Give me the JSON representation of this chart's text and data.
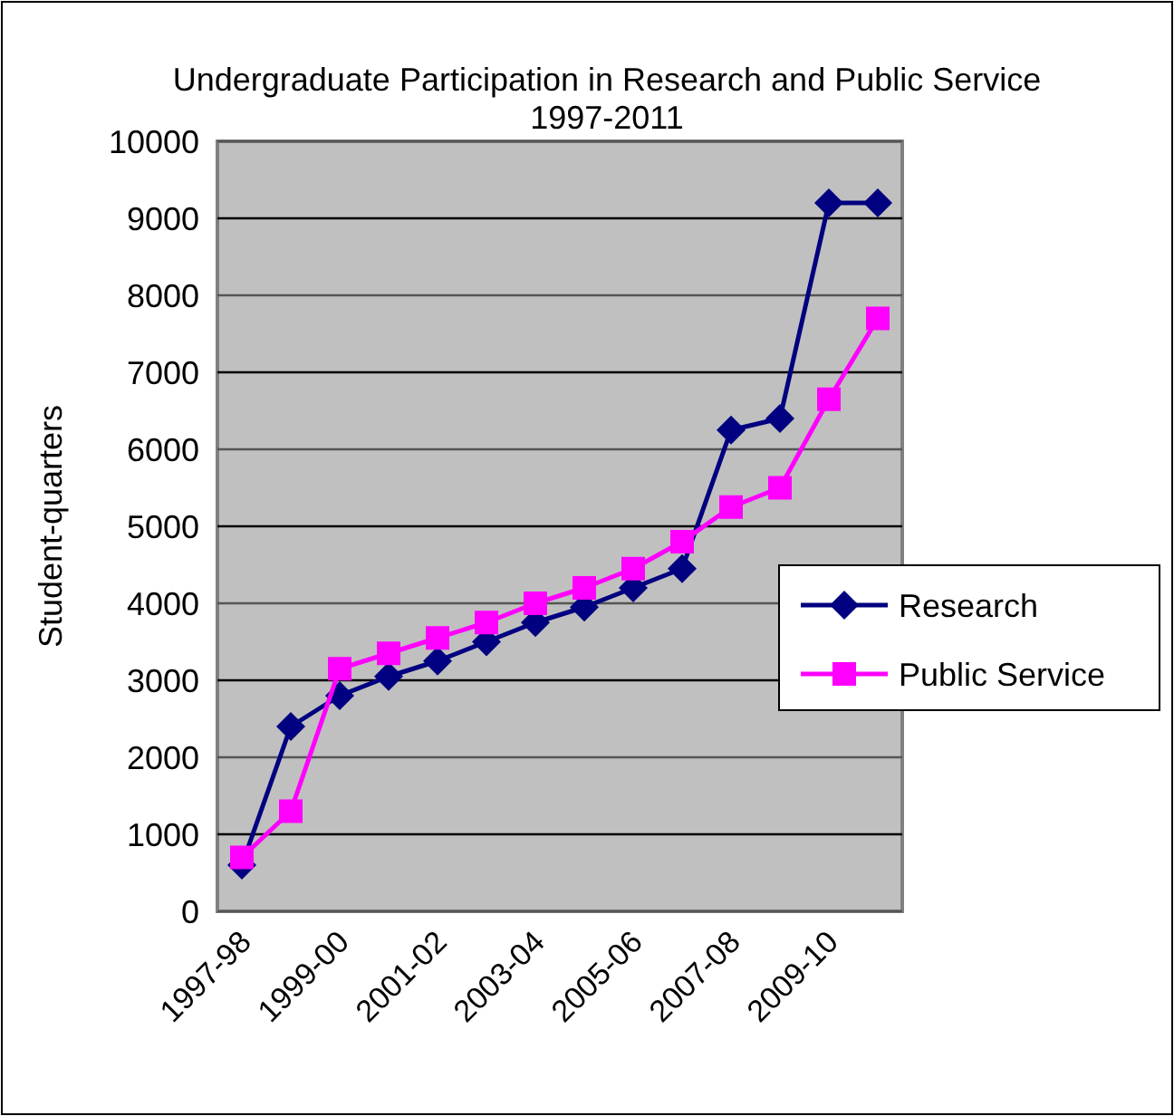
{
  "chart_data": {
    "type": "line",
    "title": "Undergraduate Participation in Research and Public Service 1997-2011",
    "ylabel": "Student-quarters",
    "categories": [
      "1997-98",
      null,
      "1999-00",
      null,
      "2001-02",
      null,
      "2003-04",
      null,
      "2005-06",
      null,
      "2007-08",
      null,
      "2009-10",
      null
    ],
    "series": [
      {
        "name": "Research",
        "color": "#000080",
        "marker": "diamond",
        "values": [
          600,
          2400,
          2800,
          3050,
          3250,
          3500,
          3750,
          3950,
          4200,
          4450,
          6250,
          6400,
          9200,
          9200
        ]
      },
      {
        "name": "Public Service",
        "color": "#ff00ff",
        "marker": "square",
        "values": [
          700,
          1300,
          3150,
          3350,
          3550,
          3750,
          4000,
          4200,
          4450,
          4800,
          5250,
          5500,
          6650,
          7700
        ]
      }
    ],
    "ylim": [
      0,
      10000
    ],
    "yticks": [
      0,
      1000,
      2000,
      3000,
      4000,
      5000,
      6000,
      7000,
      8000,
      9000,
      10000
    ],
    "grid": "y",
    "legend": "right"
  }
}
